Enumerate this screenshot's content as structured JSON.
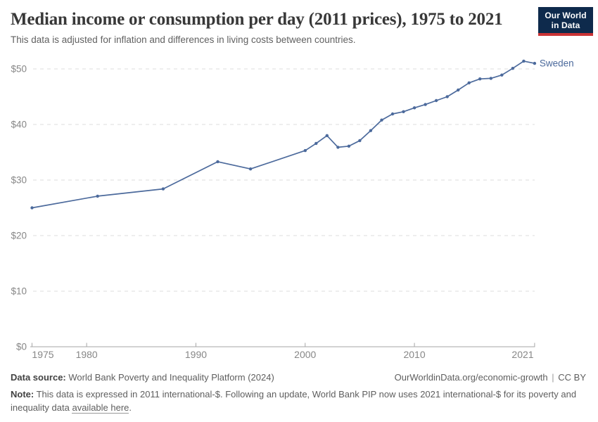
{
  "logo": {
    "line1": "Our World",
    "line2": "in Data"
  },
  "footer": {
    "datasource_label": "Data source:",
    "datasource_text": "World Bank Poverty and Inequality Platform (2024)",
    "attribution_url": "OurWorldinData.org/economic-growth",
    "attribution_separator": "|",
    "attribution_license": "CC BY",
    "note_label": "Note:",
    "note_text": "This data is expressed in 2011 international-$. Following an update, World Bank PIP now uses 2021 international-$ for its poverty and inequality data",
    "note_link_text": "available here",
    "note_suffix": "."
  },
  "chart_data": {
    "type": "line",
    "title": "Median income or consumption per day (2011 prices), 1975 to 2021",
    "subtitle": "This data is adjusted for inflation and differences in living costs between countries.",
    "xlabel": "",
    "ylabel": "",
    "xlim": [
      1975,
      2021
    ],
    "ylim": [
      0,
      52
    ],
    "grid": "horizontal-dashed",
    "legend_position": "end-of-line-label",
    "colors": {
      "line": "#4C6A9C",
      "gridline": "#dcdcdc",
      "axis": "#a6a6a6",
      "tick_text": "#878787"
    },
    "x_axis": {
      "tick_values": [
        1975,
        1980,
        1990,
        2000,
        2010,
        2021
      ],
      "tick_labels": [
        "1975",
        "1980",
        "1990",
        "2000",
        "2010",
        "2021"
      ]
    },
    "y_axis": {
      "tick_values": [
        0,
        10,
        20,
        30,
        40,
        50
      ],
      "tick_labels": [
        "$0",
        "$10",
        "$20",
        "$30",
        "$40",
        "$50"
      ]
    },
    "series": [
      {
        "name": "Sweden",
        "color": "#4C6A9C",
        "points": [
          [
            1975,
            25.0
          ],
          [
            1981,
            27.1
          ],
          [
            1987,
            28.4
          ],
          [
            1992,
            33.3
          ],
          [
            1995,
            32.0
          ],
          [
            2000,
            35.3
          ],
          [
            2001,
            36.6
          ],
          [
            2002,
            38.0
          ],
          [
            2003,
            35.9
          ],
          [
            2004,
            36.1
          ],
          [
            2005,
            37.1
          ],
          [
            2006,
            38.9
          ],
          [
            2007,
            40.8
          ],
          [
            2008,
            41.9
          ],
          [
            2009,
            42.3
          ],
          [
            2010,
            43.0
          ],
          [
            2011,
            43.6
          ],
          [
            2012,
            44.3
          ],
          [
            2013,
            45.0
          ],
          [
            2014,
            46.2
          ],
          [
            2015,
            47.5
          ],
          [
            2016,
            48.2
          ],
          [
            2017,
            48.3
          ],
          [
            2018,
            48.9
          ],
          [
            2019,
            50.1
          ],
          [
            2020,
            51.4
          ],
          [
            2021,
            51.0
          ]
        ]
      }
    ]
  }
}
